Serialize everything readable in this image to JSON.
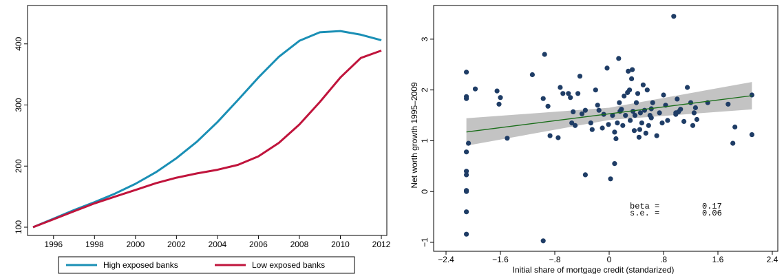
{
  "chart_data": [
    {
      "type": "line",
      "title": "",
      "xlabel": "",
      "ylabel": "",
      "xlim": [
        1995,
        2012
      ],
      "ylim": [
        100,
        420
      ],
      "xticks": [
        1996,
        1998,
        2000,
        2002,
        2004,
        2006,
        2008,
        2010,
        2012
      ],
      "yticks": [
        100,
        200,
        300,
        400
      ],
      "grid": false,
      "legend_position": "bottom",
      "x": [
        1995,
        1996,
        1997,
        1998,
        1999,
        2000,
        2001,
        2002,
        2003,
        2004,
        2005,
        2006,
        2007,
        2008,
        2009,
        2010,
        2011,
        2012
      ],
      "series": [
        {
          "name": "High exposed banks",
          "color": "#1a8fb5",
          "values": [
            100,
            114,
            128,
            141,
            155,
            171,
            190,
            213,
            240,
            272,
            308,
            345,
            379,
            405,
            419,
            421,
            415,
            406
          ]
        },
        {
          "name": "Low exposed banks",
          "color": "#c0143c",
          "values": [
            100,
            113,
            126,
            139,
            150,
            161,
            172,
            181,
            188,
            194,
            202,
            216,
            238,
            268,
            305,
            345,
            377,
            389
          ]
        }
      ]
    },
    {
      "type": "scatter",
      "title": "",
      "xlabel": "Initial share of mortgage credit (standarized)",
      "ylabel": "Net worth growth 1995–2009",
      "xlim": [
        -2.4,
        2.4
      ],
      "ylim": [
        -1,
        3.5
      ],
      "xticks": [
        -2.4,
        -1.6,
        -0.8,
        0,
        0.8,
        1.6,
        2.4
      ],
      "xtick_labels": [
        "−2.4",
        "−1.6",
        "−.8",
        "0",
        ".8",
        "1.6",
        "2.4"
      ],
      "yticks": [
        -1,
        0,
        1,
        2,
        3
      ],
      "ytick_labels": [
        "−1",
        "0",
        "1",
        "2",
        "3"
      ],
      "grid": false,
      "point_color": "#1f3d66",
      "fit_line_color": "#1a6e1a",
      "ci_color": "#bdbdbd",
      "fit": {
        "slope": 0.17,
        "intercept": 1.53,
        "x_range": [
          -2.1,
          2.1
        ],
        "ci_half_width": [
          0.27,
          0.27
        ]
      },
      "annotation": {
        "lines": [
          {
            "label": "beta =",
            "value": "0.17"
          },
          {
            "label": "s.e. =",
            "value": "0.06"
          }
        ]
      },
      "points": [
        [
          -2.1,
          2.35
        ],
        [
          -2.1,
          1.87
        ],
        [
          -2.1,
          1.83
        ],
        [
          -2.07,
          0.95
        ],
        [
          -2.1,
          0.78
        ],
        [
          -2.1,
          0.4
        ],
        [
          -2.1,
          0.33
        ],
        [
          -2.1,
          0.02
        ],
        [
          -2.1,
          0.0
        ],
        [
          -2.1,
          -0.4
        ],
        [
          -2.1,
          -0.84
        ],
        [
          -1.97,
          2.02
        ],
        [
          -1.65,
          1.98
        ],
        [
          -1.62,
          1.72
        ],
        [
          -1.6,
          1.85
        ],
        [
          -1.5,
          1.05
        ],
        [
          -1.13,
          2.3
        ],
        [
          -0.95,
          2.7
        ],
        [
          -0.9,
          1.68
        ],
        [
          -0.87,
          1.1
        ],
        [
          -0.97,
          1.83
        ],
        [
          -0.97,
          -0.97
        ],
        [
          -0.75,
          1.06
        ],
        [
          -0.72,
          2.05
        ],
        [
          -0.68,
          1.93
        ],
        [
          -0.6,
          1.93
        ],
        [
          -0.57,
          1.85
        ],
        [
          -0.55,
          1.35
        ],
        [
          -0.53,
          1.57
        ],
        [
          -0.5,
          1.3
        ],
        [
          -0.46,
          1.93
        ],
        [
          -0.43,
          2.27
        ],
        [
          -0.4,
          1.53
        ],
        [
          -0.35,
          1.6
        ],
        [
          -0.27,
          1.35
        ],
        [
          -0.25,
          1.22
        ],
        [
          -0.2,
          2.0
        ],
        [
          -0.17,
          1.7
        ],
        [
          -0.15,
          1.6
        ],
        [
          -0.1,
          1.25
        ],
        [
          -0.08,
          1.52
        ],
        [
          -0.03,
          2.43
        ],
        [
          -0.01,
          1.32
        ],
        [
          0.02,
          0.25
        ],
        [
          0.05,
          1.5
        ],
        [
          0.08,
          1.17
        ],
        [
          0.1,
          1.04
        ],
        [
          0.12,
          1.35
        ],
        [
          0.14,
          2.62
        ],
        [
          0.16,
          1.58
        ],
        [
          0.18,
          1.62
        ],
        [
          0.2,
          1.3
        ],
        [
          0.22,
          1.88
        ],
        [
          0.24,
          1.5
        ],
        [
          0.27,
          1.95
        ],
        [
          0.28,
          2.37
        ],
        [
          0.3,
          2.0
        ],
        [
          0.31,
          1.4
        ],
        [
          0.33,
          2.22
        ],
        [
          0.34,
          2.4
        ],
        [
          0.35,
          1.58
        ],
        [
          0.37,
          1.2
        ],
        [
          0.38,
          1.5
        ],
        [
          0.4,
          1.75
        ],
        [
          0.42,
          1.93
        ],
        [
          0.44,
          1.07
        ],
        [
          0.46,
          1.55
        ],
        [
          0.48,
          1.35
        ],
        [
          0.5,
          2.1
        ],
        [
          0.52,
          1.6
        ],
        [
          0.54,
          1.15
        ],
        [
          0.56,
          2.0
        ],
        [
          0.58,
          1.3
        ],
        [
          0.6,
          1.5
        ],
        [
          0.62,
          1.63
        ],
        [
          0.64,
          1.75
        ],
        [
          0.7,
          1.1
        ],
        [
          0.74,
          1.55
        ],
        [
          0.78,
          1.35
        ],
        [
          0.8,
          1.9
        ],
        [
          0.83,
          1.7
        ],
        [
          0.86,
          1.4
        ],
        [
          0.95,
          3.45
        ],
        [
          0.98,
          1.52
        ],
        [
          1.0,
          1.82
        ],
        [
          1.02,
          1.57
        ],
        [
          1.05,
          1.62
        ],
        [
          1.1,
          1.38
        ],
        [
          1.15,
          2.05
        ],
        [
          1.2,
          1.75
        ],
        [
          1.23,
          1.3
        ],
        [
          1.25,
          1.55
        ],
        [
          1.27,
          1.65
        ],
        [
          1.29,
          1.42
        ],
        [
          1.45,
          1.75
        ],
        [
          1.75,
          1.72
        ],
        [
          1.82,
          0.95
        ],
        [
          1.85,
          1.27
        ],
        [
          2.1,
          1.9
        ],
        [
          2.1,
          1.12
        ],
        [
          -0.35,
          0.33
        ],
        [
          0.08,
          0.55
        ],
        [
          0.98,
          1.55
        ],
        [
          0.45,
          1.22
        ],
        [
          0.62,
          1.45
        ],
        [
          0.15,
          1.75
        ]
      ]
    }
  ]
}
